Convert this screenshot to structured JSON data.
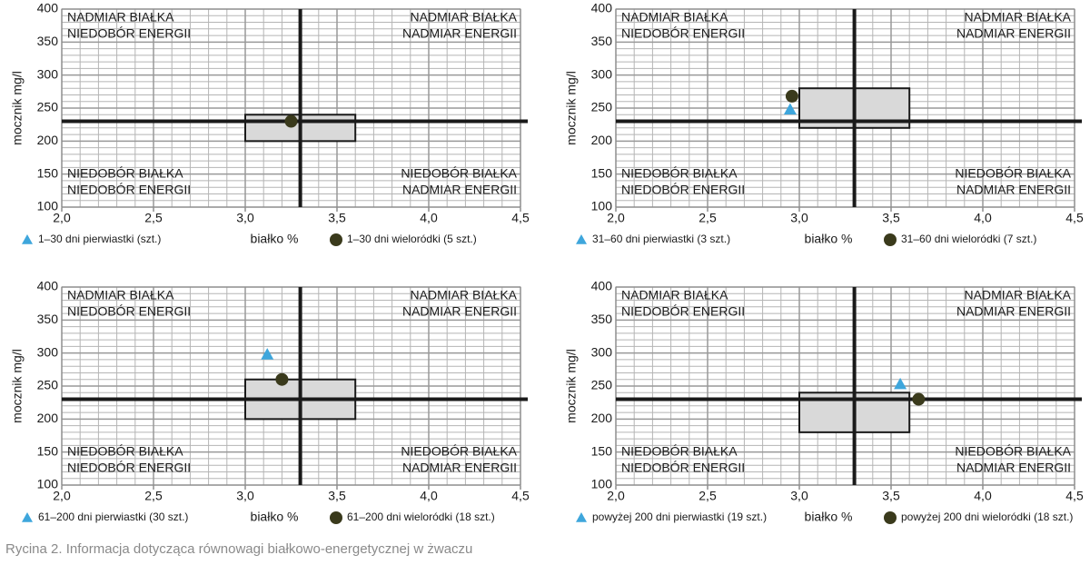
{
  "chart_data": [
    {
      "type": "scatter",
      "x_label": "białko %",
      "y_label": "mocznik mg/l",
      "xlim": [
        2.0,
        4.5
      ],
      "xticks": [
        {
          "value": 2.0,
          "label": "2,0"
        },
        {
          "value": 2.5,
          "label": "2,5"
        },
        {
          "value": 3.0,
          "label": "3,0"
        },
        {
          "value": 3.5,
          "label": "3,5"
        },
        {
          "value": 4.0,
          "label": "4,0"
        },
        {
          "value": 4.5,
          "label": "4,5"
        }
      ],
      "ylim": [
        100,
        400
      ],
      "yticks": [
        100,
        150,
        200,
        250,
        300,
        350,
        400
      ],
      "grid": true,
      "reference_lines": {
        "x": 3.3,
        "y": 230
      },
      "range_box": {
        "x": [
          3.0,
          3.6
        ],
        "y": [
          200,
          240
        ]
      },
      "quadrant_labels": {
        "top_left": [
          "NADMIAR BIAŁKA",
          "NIEDOBÓR ENERGII"
        ],
        "top_right": [
          "NADMIAR BIAŁKA",
          "NADMIAR ENERGII"
        ],
        "bottom_left": [
          "NIEDOBÓR BIAŁKA",
          "NIEDOBÓR ENERGII"
        ],
        "bottom_right": [
          "NIEDOBÓR BIAŁKA",
          "NADMIAR ENERGII"
        ]
      },
      "series": [
        {
          "name": "1–30 dni pierwiastki (szt.)",
          "color": "#3ea6dc",
          "marker": "triangle",
          "x": [],
          "values": []
        },
        {
          "name": "1–30 dni wieloródki (5 szt.)",
          "color": "#3a3a1c",
          "marker": "circle",
          "x": [
            3.25
          ],
          "values": [
            230
          ]
        }
      ]
    },
    {
      "type": "scatter",
      "x_label": "białko %",
      "y_label": "mocznik mg/l",
      "xlim": [
        2.0,
        4.5
      ],
      "xticks": [
        {
          "value": 2.0,
          "label": "2,0"
        },
        {
          "value": 2.5,
          "label": "2,5"
        },
        {
          "value": 3.0,
          "label": "3,0"
        },
        {
          "value": 3.5,
          "label": "3,5"
        },
        {
          "value": 4.0,
          "label": "4,0"
        },
        {
          "value": 4.5,
          "label": "4,5"
        }
      ],
      "ylim": [
        100,
        400
      ],
      "yticks": [
        100,
        150,
        200,
        250,
        300,
        350,
        400
      ],
      "grid": true,
      "reference_lines": {
        "x": 3.3,
        "y": 230
      },
      "range_box": {
        "x": [
          3.0,
          3.6
        ],
        "y": [
          220,
          280
        ]
      },
      "quadrant_labels": {
        "top_left": [
          "NADMIAR BIAŁKA",
          "NIEDOBÓR ENERGII"
        ],
        "top_right": [
          "NADMIAR BIAŁKA",
          "NADMIAR ENERGII"
        ],
        "bottom_left": [
          "NIEDOBÓR BIAŁKA",
          "NIEDOBÓR ENERGII"
        ],
        "bottom_right": [
          "NIEDOBÓR BIAŁKA",
          "NADMIAR ENERGII"
        ]
      },
      "series": [
        {
          "name": "31–60 dni pierwiastki (3 szt.)",
          "color": "#3ea6dc",
          "marker": "triangle",
          "x": [
            2.95
          ],
          "values": [
            248
          ]
        },
        {
          "name": "31–60 dni wieloródki (7 szt.)",
          "color": "#3a3a1c",
          "marker": "circle",
          "x": [
            2.96
          ],
          "values": [
            268
          ]
        }
      ]
    },
    {
      "type": "scatter",
      "x_label": "białko %",
      "y_label": "mocznik mg/l",
      "xlim": [
        2.0,
        4.5
      ],
      "xticks": [
        {
          "value": 2.0,
          "label": "2,0"
        },
        {
          "value": 2.5,
          "label": "2,5"
        },
        {
          "value": 3.0,
          "label": "3,0"
        },
        {
          "value": 3.5,
          "label": "3,5"
        },
        {
          "value": 4.0,
          "label": "4,0"
        },
        {
          "value": 4.5,
          "label": "4,5"
        }
      ],
      "ylim": [
        100,
        400
      ],
      "yticks": [
        100,
        150,
        200,
        250,
        300,
        350,
        400
      ],
      "grid": true,
      "reference_lines": {
        "x": 3.3,
        "y": 230
      },
      "range_box": {
        "x": [
          3.0,
          3.6
        ],
        "y": [
          200,
          260
        ]
      },
      "quadrant_labels": {
        "top_left": [
          "NADMIAR BIAŁKA",
          "NIEDOBÓR ENERGII"
        ],
        "top_right": [
          "NADMIAR BIAŁKA",
          "NADMIAR ENERGII"
        ],
        "bottom_left": [
          "NIEDOBÓR BIAŁKA",
          "NIEDOBÓR ENERGII"
        ],
        "bottom_right": [
          "NIEDOBÓR BIAŁKA",
          "NADMIAR ENERGII"
        ]
      },
      "series": [
        {
          "name": "61–200 dni pierwiastki (30 szt.)",
          "color": "#3ea6dc",
          "marker": "triangle",
          "x": [
            3.12
          ],
          "values": [
            298
          ]
        },
        {
          "name": "61–200 dni wieloródki (18 szt.)",
          "color": "#3a3a1c",
          "marker": "circle",
          "x": [
            3.2
          ],
          "values": [
            260
          ]
        }
      ]
    },
    {
      "type": "scatter",
      "x_label": "białko %",
      "y_label": "mocznik mg/l",
      "xlim": [
        2.0,
        4.5
      ],
      "xticks": [
        {
          "value": 2.0,
          "label": "2,0"
        },
        {
          "value": 2.5,
          "label": "2,5"
        },
        {
          "value": 3.0,
          "label": "3,0"
        },
        {
          "value": 3.5,
          "label": "3,5"
        },
        {
          "value": 4.0,
          "label": "4,0"
        },
        {
          "value": 4.5,
          "label": "4,5"
        }
      ],
      "ylim": [
        100,
        400
      ],
      "yticks": [
        100,
        150,
        200,
        250,
        300,
        350,
        400
      ],
      "grid": true,
      "reference_lines": {
        "x": 3.3,
        "y": 230
      },
      "range_box": {
        "x": [
          3.0,
          3.6
        ],
        "y": [
          180,
          240
        ]
      },
      "quadrant_labels": {
        "top_left": [
          "NADMIAR BIAŁKA",
          "NIEDOBÓR ENERGII"
        ],
        "top_right": [
          "NADMIAR BIAŁKA",
          "NADMIAR ENERGII"
        ],
        "bottom_left": [
          "NIEDOBÓR BIAŁKA",
          "NIEDOBÓR ENERGII"
        ],
        "bottom_right": [
          "NIEDOBÓR BIAŁKA",
          "NADMIAR ENERGII"
        ]
      },
      "series": [
        {
          "name": "powyżej 200 dni pierwiastki (19 szt.)",
          "color": "#3ea6dc",
          "marker": "triangle",
          "x": [
            3.55
          ],
          "values": [
            253
          ]
        },
        {
          "name": "powyżej 200 dni wieloródki (18 szt.)",
          "color": "#3a3a1c",
          "marker": "circle",
          "x": [
            3.65
          ],
          "values": [
            230
          ]
        }
      ]
    }
  ],
  "caption": "Rycina 2. Informacja dotycząca równowagi białkowo-energetycznej w żwaczu"
}
